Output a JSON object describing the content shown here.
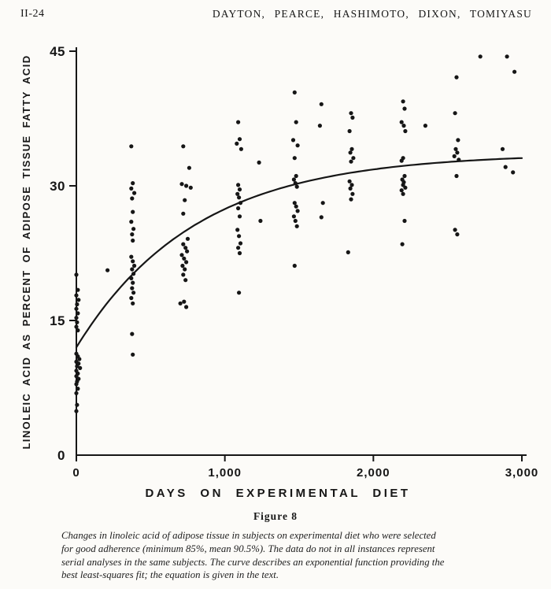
{
  "page": {
    "page_number": "II-24",
    "running_head": "DAYTON, PEARCE, HASHIMOTO, DIXON, TOMIYASU",
    "figure_label": "Figure 8",
    "caption_lines": [
      "Changes in linoleic acid of adipose tissue in subjects on experimental diet who were selected",
      "for good adherence (minimum 85%, mean 90.5%). The data do not in all instances represent",
      "serial analyses in the same subjects. The curve describes an exponential function providing the",
      "best least-squares fit; the equation is given in the text."
    ]
  },
  "chart_data": {
    "type": "scatter",
    "title": "",
    "xlabel": "DAYS ON EXPERIMENTAL DIET",
    "ylabel": "LINOLEIC ACID AS PERCENT OF ADIPOSE TISSUE FATTY ACID",
    "xlim": [
      0,
      3000
    ],
    "ylim": [
      0,
      45
    ],
    "grid": false,
    "ink_color": "#161616",
    "x_ticks": [
      {
        "value": 0,
        "label": "0"
      },
      {
        "value": 1000,
        "label": "1,000"
      },
      {
        "value": 2000,
        "label": "2,000"
      },
      {
        "value": 3000,
        "label": "3,000"
      }
    ],
    "y_ticks": [
      {
        "value": 0,
        "label": "0"
      },
      {
        "value": 15,
        "label": "15"
      },
      {
        "value": 30,
        "label": "30"
      },
      {
        "value": 45,
        "label": "45"
      }
    ],
    "curve": {
      "type": "exponential_fit",
      "formula": "y = A - (A - y0) * exp(-x / tau)",
      "y0": 12.0,
      "A": 33.6,
      "tau": 800
    },
    "points": [
      [
        0,
        20.1
      ],
      [
        10,
        18.4
      ],
      [
        0,
        17.8
      ],
      [
        15,
        17.3
      ],
      [
        5,
        16.8
      ],
      [
        0,
        16.3
      ],
      [
        10,
        15.8
      ],
      [
        0,
        15.3
      ],
      [
        5,
        14.8
      ],
      [
        0,
        14.3
      ],
      [
        10,
        13.9
      ],
      [
        0,
        11.3
      ],
      [
        10,
        11.0
      ],
      [
        20,
        10.7
      ],
      [
        0,
        10.4
      ],
      [
        15,
        10.2
      ],
      [
        5,
        9.9
      ],
      [
        25,
        9.7
      ],
      [
        0,
        9.4
      ],
      [
        10,
        9.1
      ],
      [
        0,
        8.8
      ],
      [
        15,
        8.5
      ],
      [
        5,
        8.2
      ],
      [
        0,
        7.9
      ],
      [
        10,
        7.4
      ],
      [
        0,
        6.9
      ],
      [
        5,
        5.6
      ],
      [
        0,
        4.9
      ],
      [
        210,
        20.6
      ],
      [
        370,
        34.4
      ],
      [
        380,
        30.3
      ],
      [
        370,
        29.7
      ],
      [
        390,
        29.2
      ],
      [
        375,
        28.6
      ],
      [
        380,
        27.1
      ],
      [
        370,
        26.0
      ],
      [
        385,
        25.2
      ],
      [
        375,
        24.6
      ],
      [
        380,
        23.9
      ],
      [
        370,
        22.1
      ],
      [
        380,
        21.6
      ],
      [
        390,
        21.1
      ],
      [
        375,
        20.7
      ],
      [
        385,
        20.2
      ],
      [
        370,
        19.7
      ],
      [
        380,
        19.2
      ],
      [
        375,
        18.6
      ],
      [
        385,
        18.1
      ],
      [
        370,
        17.5
      ],
      [
        380,
        16.9
      ],
      [
        375,
        13.5
      ],
      [
        380,
        11.2
      ],
      [
        720,
        34.4
      ],
      [
        760,
        32.0
      ],
      [
        710,
        30.2
      ],
      [
        740,
        30.0
      ],
      [
        770,
        29.8
      ],
      [
        730,
        28.4
      ],
      [
        720,
        26.9
      ],
      [
        750,
        24.1
      ],
      [
        720,
        23.5
      ],
      [
        735,
        23.1
      ],
      [
        745,
        22.7
      ],
      [
        710,
        22.3
      ],
      [
        725,
        21.9
      ],
      [
        740,
        21.5
      ],
      [
        715,
        21.1
      ],
      [
        730,
        20.7
      ],
      [
        720,
        20.1
      ],
      [
        735,
        19.5
      ],
      [
        725,
        17.1
      ],
      [
        740,
        16.5
      ],
      [
        700,
        16.9
      ],
      [
        1090,
        37.1
      ],
      [
        1100,
        35.2
      ],
      [
        1080,
        34.7
      ],
      [
        1110,
        34.1
      ],
      [
        1090,
        30.1
      ],
      [
        1100,
        29.6
      ],
      [
        1085,
        29.1
      ],
      [
        1095,
        28.7
      ],
      [
        1105,
        28.1
      ],
      [
        1090,
        27.5
      ],
      [
        1100,
        26.6
      ],
      [
        1085,
        25.1
      ],
      [
        1095,
        24.4
      ],
      [
        1105,
        23.6
      ],
      [
        1090,
        23.1
      ],
      [
        1100,
        22.5
      ],
      [
        1095,
        18.1
      ],
      [
        1230,
        32.6
      ],
      [
        1240,
        26.1
      ],
      [
        1470,
        40.4
      ],
      [
        1480,
        37.1
      ],
      [
        1460,
        35.1
      ],
      [
        1490,
        34.5
      ],
      [
        1470,
        33.1
      ],
      [
        1480,
        31.1
      ],
      [
        1465,
        30.7
      ],
      [
        1475,
        30.3
      ],
      [
        1485,
        29.9
      ],
      [
        1470,
        28.1
      ],
      [
        1480,
        27.7
      ],
      [
        1490,
        27.2
      ],
      [
        1465,
        26.6
      ],
      [
        1475,
        26.1
      ],
      [
        1485,
        25.5
      ],
      [
        1470,
        21.1
      ],
      [
        1650,
        39.1
      ],
      [
        1640,
        36.7
      ],
      [
        1660,
        28.1
      ],
      [
        1650,
        26.5
      ],
      [
        1850,
        38.1
      ],
      [
        1860,
        37.6
      ],
      [
        1840,
        36.1
      ],
      [
        1855,
        34.1
      ],
      [
        1845,
        33.7
      ],
      [
        1865,
        33.1
      ],
      [
        1850,
        32.7
      ],
      [
        1840,
        30.5
      ],
      [
        1855,
        30.1
      ],
      [
        1845,
        29.7
      ],
      [
        1860,
        29.1
      ],
      [
        1850,
        28.5
      ],
      [
        1830,
        22.6
      ],
      [
        2200,
        39.4
      ],
      [
        2210,
        38.6
      ],
      [
        2190,
        37.1
      ],
      [
        2205,
        36.7
      ],
      [
        2215,
        36.1
      ],
      [
        2200,
        33.1
      ],
      [
        2190,
        32.8
      ],
      [
        2210,
        31.1
      ],
      [
        2195,
        30.7
      ],
      [
        2205,
        30.4
      ],
      [
        2200,
        30.1
      ],
      [
        2215,
        29.8
      ],
      [
        2190,
        29.5
      ],
      [
        2200,
        29.1
      ],
      [
        2210,
        26.1
      ],
      [
        2195,
        23.5
      ],
      [
        2350,
        36.7
      ],
      [
        2560,
        42.1
      ],
      [
        2550,
        38.1
      ],
      [
        2570,
        35.1
      ],
      [
        2555,
        34.1
      ],
      [
        2565,
        33.7
      ],
      [
        2545,
        33.3
      ],
      [
        2575,
        32.9
      ],
      [
        2560,
        31.1
      ],
      [
        2550,
        25.1
      ],
      [
        2565,
        24.6
      ],
      [
        2720,
        44.4
      ],
      [
        2900,
        44.4
      ],
      [
        2950,
        42.7
      ],
      [
        2870,
        34.1
      ],
      [
        2890,
        32.1
      ],
      [
        2940,
        31.5
      ]
    ]
  }
}
